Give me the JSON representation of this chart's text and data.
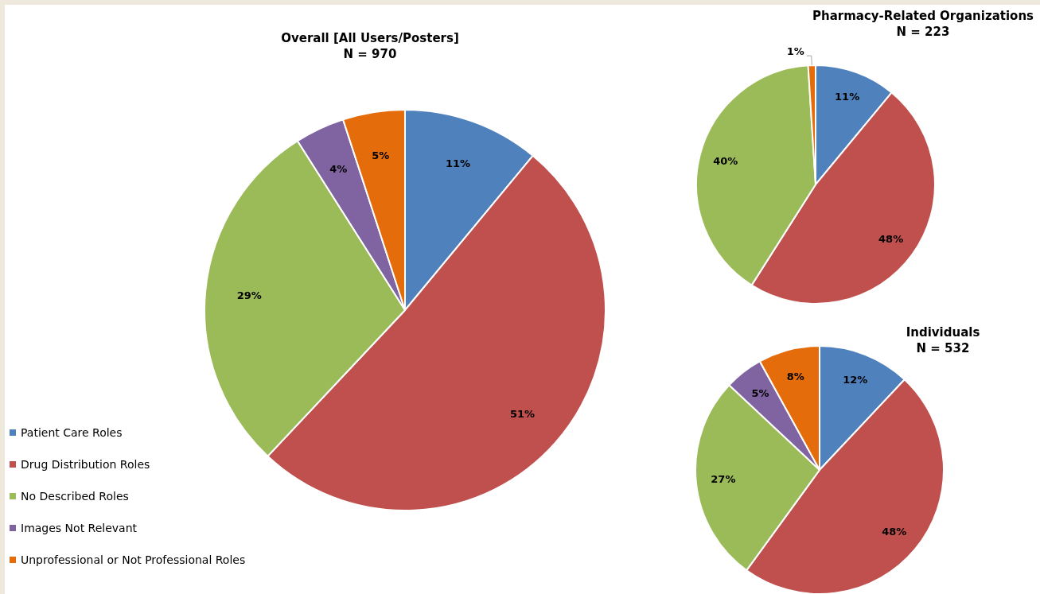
{
  "chart_data": [
    {
      "type": "pie",
      "title": "Overall [All Users/Posters]",
      "subtitle": "N = 970",
      "categories": [
        "Patient Care Roles",
        "Drug Distribution Roles",
        "No Described Roles",
        "Images Not Relevant",
        "Unprofessional or Not Professional Roles"
      ],
      "values": [
        11,
        51,
        29,
        4,
        5
      ],
      "colors": [
        "#4f81bd",
        "#c0504d",
        "#9bbb59",
        "#8064a2",
        "#e46c0a"
      ],
      "value_labels": [
        "11%",
        "51%",
        "29%",
        "4%",
        "5%"
      ],
      "legend": "left"
    },
    {
      "type": "pie",
      "title": "Pharmacy-Related Organizations",
      "subtitle": "N = 223",
      "categories": [
        null,
        null,
        null,
        null
      ],
      "values": [
        11,
        48,
        40,
        1
      ],
      "colors": [
        "#4f81bd",
        "#c0504d",
        "#9bbb59",
        "#e46c0a"
      ],
      "value_labels": [
        "11%",
        "48%",
        "40%",
        "1%"
      ]
    },
    {
      "type": "pie",
      "title": "Individuals",
      "subtitle": "N = 532",
      "categories": [
        null,
        null,
        null,
        null,
        null
      ],
      "values": [
        12,
        48,
        27,
        5,
        8
      ],
      "colors": [
        "#4f81bd",
        "#c0504d",
        "#9bbb59",
        "#8064a2",
        "#e46c0a"
      ],
      "value_labels": [
        "12%",
        "48%",
        "27%",
        "5%",
        "8%"
      ]
    }
  ]
}
